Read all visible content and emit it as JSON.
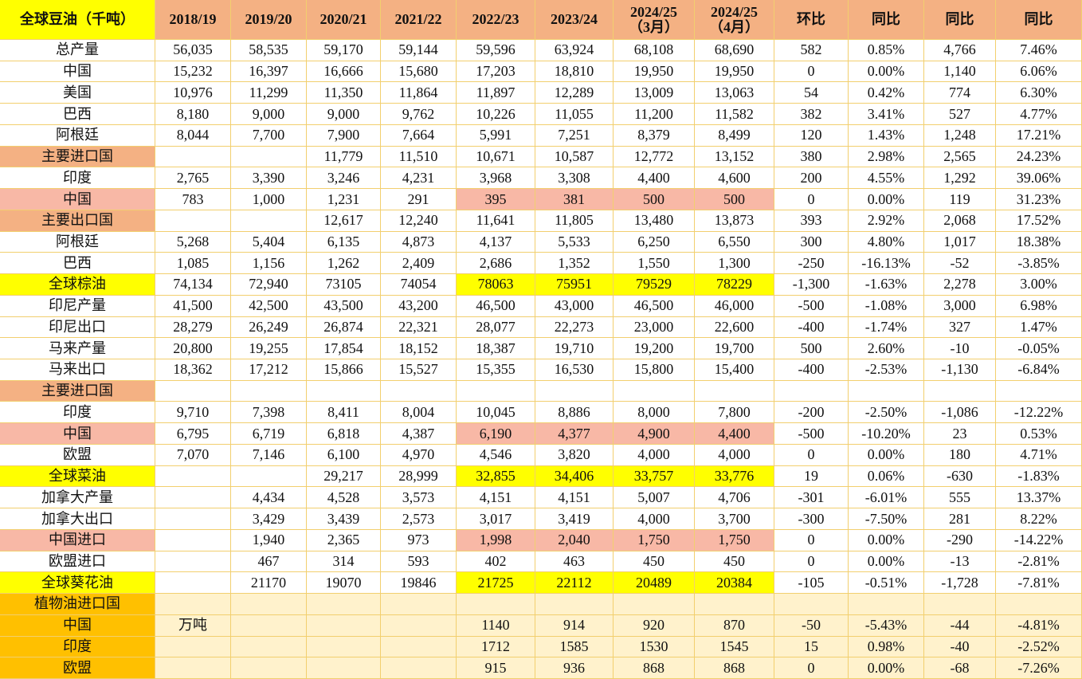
{
  "table": {
    "header": [
      "全球豆油（千吨）",
      "2018/19",
      "2019/20",
      "2020/21",
      "2021/22",
      "2022/23",
      "2023/24",
      "2024/25\n（3月）",
      "2024/25\n（4月）",
      "环比",
      "同比",
      "同比",
      "同比"
    ],
    "rows": [
      {
        "label": "总产量",
        "cells": [
          "56,035",
          "58,535",
          "59,170",
          "59,144",
          "59,596",
          "63,924",
          "68,108",
          "68,690",
          "582",
          "0.85%",
          "4,766",
          "7.46%"
        ]
      },
      {
        "label": "中国",
        "cells": [
          "15,232",
          "16,397",
          "16,666",
          "15,680",
          "17,203",
          "18,810",
          "19,950",
          "19,950",
          "0",
          "0.00%",
          "1,140",
          "6.06%"
        ]
      },
      {
        "label": "美国",
        "cells": [
          "10,976",
          "11,299",
          "11,350",
          "11,864",
          "11,897",
          "12,289",
          "13,009",
          "13,063",
          "54",
          "0.42%",
          "774",
          "6.30%"
        ]
      },
      {
        "label": "巴西",
        "cells": [
          "8,180",
          "9,000",
          "9,000",
          "9,762",
          "10,226",
          "11,055",
          "11,200",
          "11,582",
          "382",
          "3.41%",
          "527",
          "4.77%"
        ]
      },
      {
        "label": "阿根廷",
        "cells": [
          "8,044",
          "7,700",
          "7,900",
          "7,664",
          "5,991",
          "7,251",
          "8,379",
          "8,499",
          "120",
          "1.43%",
          "1,248",
          "17.21%"
        ]
      },
      {
        "label": "主要进口国",
        "cells": [
          null,
          null,
          "11,779",
          "11,510",
          "10,671",
          "10,587",
          "12,772",
          "13,152",
          "380",
          "2.98%",
          "2,565",
          "24.23%"
        ]
      },
      {
        "label": "印度",
        "cells": [
          "2,765",
          "3,390",
          "3,246",
          "4,231",
          "3,968",
          "3,308",
          "4,400",
          "4,600",
          "200",
          "4.55%",
          "1,292",
          "39.06%"
        ]
      },
      {
        "label": "中国",
        "cells": [
          "783",
          "1,000",
          "1,231",
          "291",
          "395",
          "381",
          "500",
          "500",
          "0",
          "0.00%",
          "119",
          "31.23%"
        ]
      },
      {
        "label": "主要出口国",
        "cells": [
          null,
          null,
          "12,617",
          "12,240",
          "11,641",
          "11,805",
          "13,480",
          "13,873",
          "393",
          "2.92%",
          "2,068",
          "17.52%"
        ]
      },
      {
        "label": "阿根廷",
        "cells": [
          "5,268",
          "5,404",
          "6,135",
          "4,873",
          "4,137",
          "5,533",
          "6,250",
          "6,550",
          "300",
          "4.80%",
          "1,017",
          "18.38%"
        ]
      },
      {
        "label": "巴西",
        "cells": [
          "1,085",
          "1,156",
          "1,262",
          "2,409",
          "2,686",
          "1,352",
          "1,550",
          "1,300",
          "-250",
          "-16.13%",
          "-52",
          "-3.85%"
        ]
      },
      {
        "label": "全球棕油",
        "cells": [
          "74,134",
          "72,940",
          "73105",
          "74054",
          "78063",
          "75951",
          "79529",
          "78229",
          "-1,300",
          "-1.63%",
          "2,278",
          "3.00%"
        ]
      },
      {
        "label": "印尼产量",
        "cells": [
          "41,500",
          "42,500",
          "43,500",
          "43,200",
          "46,500",
          "43,000",
          "46,500",
          "46,000",
          "-500",
          "-1.08%",
          "3,000",
          "6.98%"
        ]
      },
      {
        "label": "印尼出口",
        "cells": [
          "28,279",
          "26,249",
          "26,874",
          "22,321",
          "28,077",
          "22,273",
          "23,000",
          "22,600",
          "-400",
          "-1.74%",
          "327",
          "1.47%"
        ]
      },
      {
        "label": "马来产量",
        "cells": [
          "20,800",
          "19,255",
          "17,854",
          "18,152",
          "18,387",
          "19,710",
          "19,200",
          "19,700",
          "500",
          "2.60%",
          "-10",
          "-0.05%"
        ]
      },
      {
        "label": "马来出口",
        "cells": [
          "18,362",
          "17,212",
          "15,866",
          "15,527",
          "15,355",
          "16,530",
          "15,800",
          "15,400",
          "-400",
          "-2.53%",
          "-1,130",
          "-6.84%"
        ]
      },
      {
        "label": "主要进口国",
        "cells": [
          null,
          null,
          null,
          null,
          null,
          null,
          null,
          null,
          null,
          null,
          null,
          null
        ]
      },
      {
        "label": "印度",
        "cells": [
          "9,710",
          "7,398",
          "8,411",
          "8,004",
          "10,045",
          "8,886",
          "8,000",
          "7,800",
          "-200",
          "-2.50%",
          "-1,086",
          "-12.22%"
        ]
      },
      {
        "label": "中国",
        "cells": [
          "6,795",
          "6,719",
          "6,818",
          "4,387",
          "6,190",
          "4,377",
          "4,900",
          "4,400",
          "-500",
          "-10.20%",
          "23",
          "0.53%"
        ]
      },
      {
        "label": "欧盟",
        "cells": [
          "7,070",
          "7,146",
          "6,100",
          "4,970",
          "4,546",
          "3,820",
          "4,000",
          "4,000",
          "0",
          "0.00%",
          "180",
          "4.71%"
        ]
      },
      {
        "label": "全球菜油",
        "cells": [
          null,
          null,
          "29,217",
          "28,999",
          "32,855",
          "34,406",
          "33,757",
          "33,776",
          "19",
          "0.06%",
          "-630",
          "-1.83%"
        ]
      },
      {
        "label": "加拿大产量",
        "cells": [
          null,
          "4,434",
          "4,528",
          "3,573",
          "4,151",
          "4,151",
          "5,007",
          "4,706",
          "-301",
          "-6.01%",
          "555",
          "13.37%"
        ]
      },
      {
        "label": "加拿大出口",
        "cells": [
          null,
          "3,429",
          "3,439",
          "2,573",
          "3,017",
          "3,419",
          "4,000",
          "3,700",
          "-300",
          "-7.50%",
          "281",
          "8.22%"
        ]
      },
      {
        "label": "中国进口",
        "cells": [
          null,
          "1,940",
          "2,365",
          "973",
          "1,998",
          "2,040",
          "1,750",
          "1,750",
          "0",
          "0.00%",
          "-290",
          "-14.22%"
        ]
      },
      {
        "label": "欧盟进口",
        "cells": [
          null,
          "467",
          "314",
          "593",
          "402",
          "463",
          "450",
          "450",
          "0",
          "0.00%",
          "-13",
          "-2.81%"
        ]
      },
      {
        "label": "全球葵花油",
        "cells": [
          null,
          "21170",
          "19070",
          "19846",
          "21725",
          "22112",
          "20489",
          "20384",
          "-105",
          "-0.51%",
          "-1,728",
          "-7.81%"
        ]
      },
      {
        "label": "植物油进口国",
        "cells": [
          null,
          null,
          null,
          null,
          null,
          null,
          null,
          null,
          null,
          null,
          null,
          null
        ]
      },
      {
        "label": "中国",
        "cells": [
          "万吨",
          null,
          null,
          null,
          "1140",
          "914",
          "920",
          "870",
          "-50",
          "-5.43%",
          "-44",
          "-4.81%"
        ]
      },
      {
        "label": "印度",
        "cells": [
          null,
          null,
          null,
          null,
          "1712",
          "1585",
          "1530",
          "1545",
          "15",
          "0.98%",
          "-40",
          "-2.52%"
        ]
      },
      {
        "label": "欧盟",
        "cells": [
          null,
          null,
          null,
          null,
          "915",
          "936",
          "868",
          "868",
          "0",
          "0.00%",
          "-68",
          "-7.26%"
        ]
      }
    ]
  }
}
